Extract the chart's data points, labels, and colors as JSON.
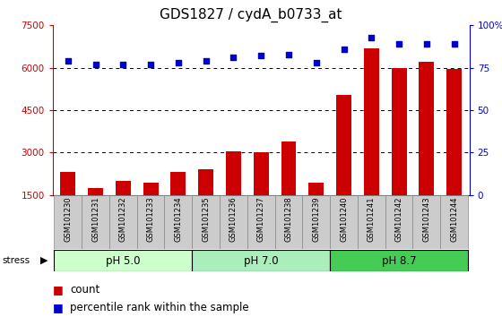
{
  "title": "GDS1827 / cydA_b0733_at",
  "categories": [
    "GSM101230",
    "GSM101231",
    "GSM101232",
    "GSM101233",
    "GSM101234",
    "GSM101235",
    "GSM101236",
    "GSM101237",
    "GSM101238",
    "GSM101239",
    "GSM101240",
    "GSM101241",
    "GSM101242",
    "GSM101243",
    "GSM101244"
  ],
  "counts": [
    2300,
    1750,
    2000,
    1950,
    2300,
    2400,
    3050,
    3000,
    3400,
    1950,
    5050,
    6700,
    6000,
    6200,
    5950
  ],
  "percentiles": [
    79,
    77,
    77,
    77,
    78,
    79,
    81,
    82,
    83,
    78,
    86,
    93,
    89,
    89,
    89
  ],
  "groups": [
    {
      "label": "pH 5.0",
      "start": 0,
      "end": 4,
      "color": "#ccffcc"
    },
    {
      "label": "pH 7.0",
      "start": 5,
      "end": 9,
      "color": "#aaeebb"
    },
    {
      "label": "pH 8.7",
      "start": 10,
      "end": 14,
      "color": "#44cc55"
    }
  ],
  "stress_label": "stress",
  "ylim_left": [
    1500,
    7500
  ],
  "ylim_right": [
    0,
    100
  ],
  "yticks_left": [
    1500,
    3000,
    4500,
    6000,
    7500
  ],
  "yticks_right": [
    0,
    25,
    50,
    75,
    100
  ],
  "bar_color": "#cc0000",
  "dot_color": "#0000cc",
  "xtick_bg_color": "#cccccc",
  "title_fontsize": 11,
  "tick_fontsize": 7.5,
  "label_fontsize": 8.5,
  "xtick_fontsize": 6,
  "dotted_lines": [
    3000,
    4500,
    6000
  ],
  "right_ytick_labels": [
    "0",
    "25",
    "50",
    "75",
    "100%"
  ]
}
